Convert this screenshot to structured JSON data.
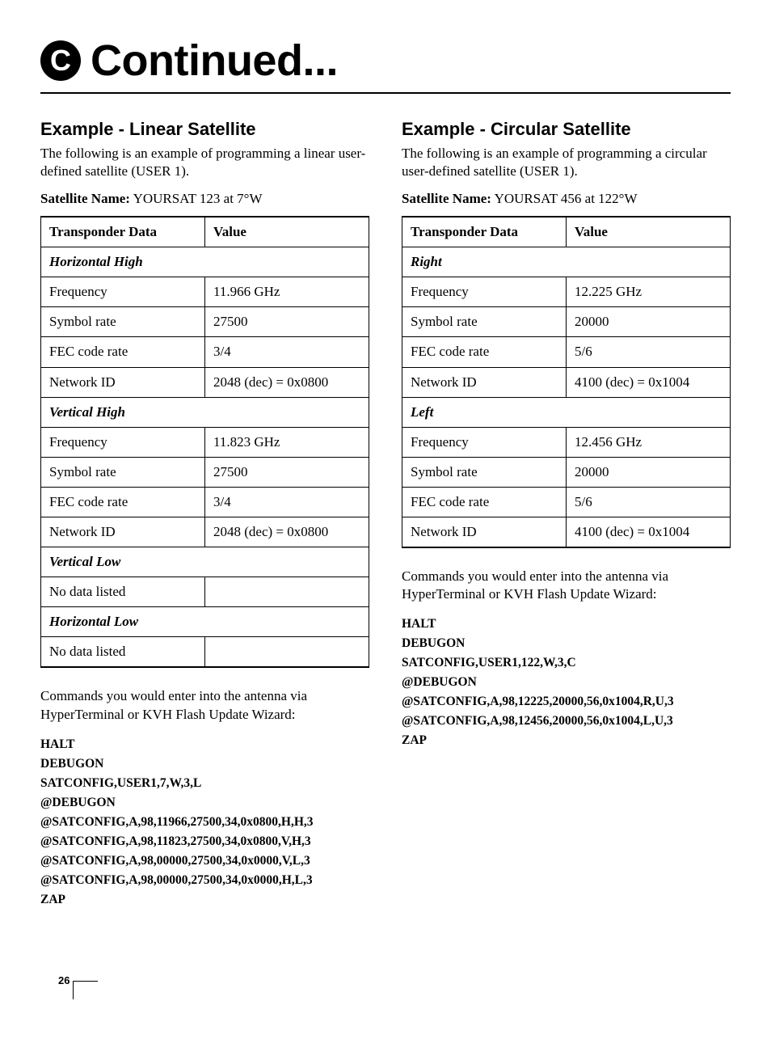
{
  "header": {
    "badge": "C",
    "title": "Continued..."
  },
  "left": {
    "heading": "Example - Linear Satellite",
    "intro": "The following is an example of programming a linear user-defined satellite (USER 1).",
    "satname_label": "Satellite Name:",
    "satname_value": "YOURSAT 123 at 7°W",
    "th1": "Transponder Data",
    "th2": "Value",
    "sections": [
      {
        "title": "Horizontal High",
        "rows": [
          {
            "k": "Frequency",
            "v": "11.966 GHz"
          },
          {
            "k": "Symbol rate",
            "v": "27500"
          },
          {
            "k": "FEC code rate",
            "v": "3/4"
          },
          {
            "k": "Network ID",
            "v": "2048 (dec) = 0x0800"
          }
        ]
      },
      {
        "title": "Vertical High",
        "rows": [
          {
            "k": "Frequency",
            "v": "11.823 GHz"
          },
          {
            "k": "Symbol rate",
            "v": "27500"
          },
          {
            "k": "FEC code rate",
            "v": "3/4"
          },
          {
            "k": "Network ID",
            "v": "2048 (dec) = 0x0800"
          }
        ]
      },
      {
        "title": "Vertical Low",
        "rows": [
          {
            "k": "No data listed",
            "v": ""
          }
        ]
      },
      {
        "title": "Horizontal Low",
        "rows": [
          {
            "k": "No data listed",
            "v": ""
          }
        ]
      }
    ],
    "cmd_intro": "Commands you would enter into the antenna via HyperTerminal or KVH Flash Update Wizard:",
    "commands": [
      "HALT",
      "DEBUGON",
      "SATCONFIG,USER1,7,W,3,L",
      "@DEBUGON",
      "@SATCONFIG,A,98,11966,27500,34,0x0800,H,H,3",
      "@SATCONFIG,A,98,11823,27500,34,0x0800,V,H,3",
      "@SATCONFIG,A,98,00000,27500,34,0x0000,V,L,3",
      "@SATCONFIG,A,98,00000,27500,34,0x0000,H,L,3",
      "ZAP"
    ]
  },
  "right": {
    "heading": "Example - Circular Satellite",
    "intro": "The following is an example of programming a circular user-defined satellite (USER 1).",
    "satname_label": "Satellite Name:",
    "satname_value": "YOURSAT 456 at 122°W",
    "th1": "Transponder Data",
    "th2": "Value",
    "sections": [
      {
        "title": "Right",
        "rows": [
          {
            "k": "Frequency",
            "v": "12.225 GHz"
          },
          {
            "k": "Symbol rate",
            "v": "20000"
          },
          {
            "k": "FEC code rate",
            "v": "5/6"
          },
          {
            "k": "Network ID",
            "v": "4100 (dec) = 0x1004"
          }
        ]
      },
      {
        "title": "Left",
        "rows": [
          {
            "k": "Frequency",
            "v": "12.456 GHz"
          },
          {
            "k": "Symbol rate",
            "v": "20000"
          },
          {
            "k": "FEC code rate",
            "v": "5/6"
          },
          {
            "k": "Network ID",
            "v": "4100 (dec) = 0x1004"
          }
        ]
      }
    ],
    "cmd_intro": "Commands you would enter into the antenna via HyperTerminal or KVH Flash Update Wizard:",
    "commands": [
      "HALT",
      "DEBUGON",
      "SATCONFIG,USER1,122,W,3,C",
      "@DEBUGON",
      "@SATCONFIG,A,98,12225,20000,56,0x1004,R,U,3",
      "@SATCONFIG,A,98,12456,20000,56,0x1004,L,U,3",
      "ZAP"
    ]
  },
  "page_number": "26"
}
